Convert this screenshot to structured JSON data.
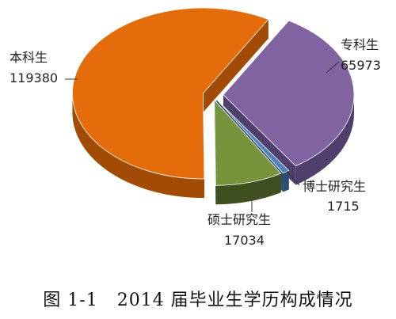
{
  "chart_data": {
    "type": "pie",
    "style": "3d-exploded",
    "slices": [
      {
        "label": "专科生",
        "value": 65973,
        "value_text": "65973",
        "color": "#8064a2",
        "side": "#4f3f6c"
      },
      {
        "label": "博士研究生",
        "value": 1715,
        "value_text": "1715",
        "color": "#4f81bd",
        "side": "#2d4d75"
      },
      {
        "label": "硕士研究生",
        "value": 17034,
        "value_text": "17034",
        "color": "#77933c",
        "side": "#3f4f20"
      },
      {
        "label": "本科生",
        "value": 119380,
        "value_text": "119380",
        "color": "#e46c0a",
        "side": "#a14b05"
      }
    ]
  },
  "caption": "图 1-1   2014 届毕业生学历构成情况"
}
